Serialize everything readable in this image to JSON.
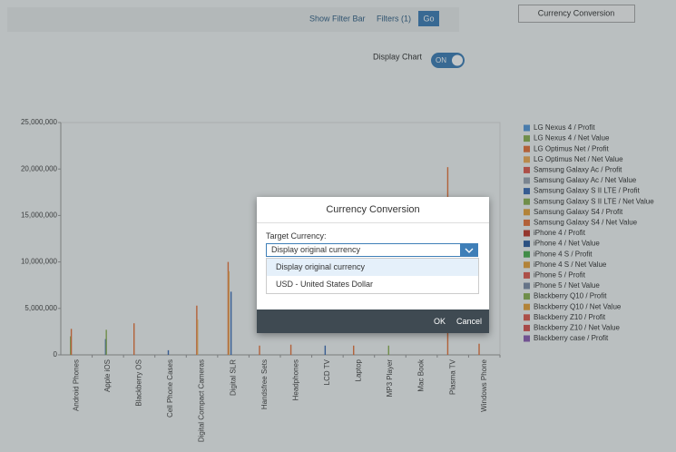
{
  "toolbar": {
    "show_filter_bar": "Show Filter Bar",
    "filters": "Filters (1)",
    "go": "Go",
    "currency_button": "Currency Conversion"
  },
  "display_chart": {
    "label": "Display Chart",
    "toggle": "ON"
  },
  "chart_data": {
    "type": "bar",
    "grid": false,
    "categories": [
      "Android Phones",
      "Apple iOS",
      "Blackberry OS",
      "Cell Phone Cases",
      "Digital Compact Cameras",
      "Digital SLR",
      "Handsfree Sets",
      "Headphones",
      "LCD TV",
      "Laptop",
      "MP3 Player",
      "Mac Book",
      "Plasma TV",
      "Windows Phone"
    ],
    "ylim": [
      0,
      25000000
    ],
    "yticks": [
      0,
      {
        "value": 5000000,
        "label": "5,000,000"
      },
      {
        "value": 10000000,
        "label": "10,000,000"
      },
      {
        "value": 15000000,
        "label": "15,000,000"
      },
      {
        "value": 20000000,
        "label": "20,000,000"
      },
      {
        "value": 25000000,
        "label": "25,000,000"
      }
    ],
    "series": [
      {
        "name": "LG Nexus 4 / Profit",
        "color": "#5899DA",
        "values": [
          null,
          null,
          null,
          null,
          null,
          null,
          null,
          null,
          null,
          null,
          null,
          null,
          null,
          null
        ]
      },
      {
        "name": "LG Nexus 4 / Net Value",
        "color": "#8DB253",
        "values": [
          2000000,
          null,
          null,
          null,
          null,
          null,
          null,
          null,
          null,
          null,
          null,
          null,
          null,
          null
        ]
      },
      {
        "name": "LG Optimus Net / Profit",
        "color": "#E8743B",
        "values": [
          2800000,
          null,
          3400000,
          null,
          5300000,
          10000000,
          1000000,
          1100000,
          null,
          1000000,
          null,
          null,
          20200000,
          1200000
        ]
      },
      {
        "name": "LG Optimus Net / Net Value",
        "color": "#F0AB55",
        "values": [
          null,
          null,
          null,
          null,
          3800000,
          9000000,
          null,
          null,
          null,
          null,
          null,
          null,
          null,
          null
        ]
      },
      {
        "name": "Samsung Galaxy Ac / Profit",
        "color": "#E05A4F",
        "values": [
          null,
          null,
          null,
          null,
          null,
          null,
          null,
          null,
          null,
          null,
          null,
          null,
          null,
          null
        ]
      },
      {
        "name": "Samsung Galaxy Ac / Net Value",
        "color": "#9BA6B3",
        "values": [
          null,
          null,
          null,
          null,
          null,
          null,
          null,
          null,
          null,
          null,
          null,
          null,
          null,
          null
        ]
      },
      {
        "name": "Samsung Galaxy S II LTE / Profit",
        "color": "#3E6DB5",
        "values": [
          null,
          1700000,
          null,
          500000,
          null,
          6800000,
          null,
          null,
          1000000,
          null,
          null,
          null,
          null,
          null
        ]
      },
      {
        "name": "Samsung Galaxy S II LTE / Net Value",
        "color": "#8DB253",
        "values": [
          null,
          2700000,
          null,
          null,
          null,
          null,
          null,
          null,
          null,
          null,
          1000000,
          null,
          null,
          null
        ]
      },
      {
        "name": "Samsung Galaxy S4 / Profit",
        "color": "#E8A33B",
        "values": [
          null,
          null,
          null,
          null,
          null,
          null,
          null,
          null,
          null,
          null,
          null,
          null,
          null,
          null
        ]
      },
      {
        "name": "Samsung Galaxy S4 / Net Value",
        "color": "#E8743B",
        "values": [
          null,
          null,
          null,
          null,
          null,
          null,
          null,
          null,
          null,
          null,
          null,
          null,
          null,
          null
        ]
      },
      {
        "name": "iPhone 4 / Profit",
        "color": "#C0392B",
        "values": [
          null,
          null,
          null,
          null,
          null,
          null,
          null,
          null,
          null,
          null,
          null,
          null,
          null,
          null
        ]
      },
      {
        "name": "iPhone 4 / Net Value",
        "color": "#2F5E9E",
        "values": [
          null,
          null,
          null,
          null,
          null,
          null,
          null,
          null,
          null,
          null,
          null,
          null,
          null,
          null
        ]
      },
      {
        "name": "iPhone 4 S / Profit",
        "color": "#4CAF50",
        "values": [
          null,
          null,
          null,
          null,
          null,
          null,
          null,
          null,
          null,
          null,
          null,
          null,
          null,
          null
        ]
      },
      {
        "name": "iPhone 4 S / Net Value",
        "color": "#E8A33B",
        "values": [
          null,
          null,
          null,
          null,
          null,
          null,
          null,
          null,
          null,
          null,
          null,
          null,
          null,
          null
        ]
      },
      {
        "name": "iPhone 5 / Profit",
        "color": "#E05A4F",
        "values": [
          null,
          null,
          null,
          null,
          null,
          null,
          null,
          null,
          null,
          null,
          null,
          null,
          null,
          null
        ]
      },
      {
        "name": "iPhone 5 / Net Value",
        "color": "#7E8EA8",
        "values": [
          null,
          null,
          null,
          null,
          null,
          null,
          null,
          null,
          null,
          null,
          null,
          null,
          null,
          null
        ]
      },
      {
        "name": "Blackberry Q10 / Profit",
        "color": "#8DB253",
        "values": [
          null,
          null,
          null,
          null,
          null,
          null,
          null,
          null,
          null,
          null,
          null,
          null,
          null,
          null
        ]
      },
      {
        "name": "Blackberry Q10 / Net Value",
        "color": "#E8A33B",
        "values": [
          null,
          null,
          null,
          null,
          null,
          null,
          null,
          null,
          null,
          null,
          null,
          null,
          null,
          null
        ]
      },
      {
        "name": "Blackberry Z10 / Profit",
        "color": "#E05A4F",
        "values": [
          null,
          null,
          null,
          null,
          null,
          null,
          null,
          null,
          null,
          null,
          null,
          null,
          null,
          null
        ]
      },
      {
        "name": "Blackberry Z10 / Net Value",
        "color": "#D9534F",
        "values": [
          null,
          null,
          null,
          null,
          null,
          null,
          null,
          null,
          null,
          null,
          null,
          null,
          null,
          null
        ]
      },
      {
        "name": "Blackberry case / Profit",
        "color": "#8E5FB5",
        "values": [
          null,
          null,
          null,
          null,
          null,
          null,
          null,
          null,
          null,
          null,
          null,
          null,
          null,
          null
        ]
      }
    ]
  },
  "dialog": {
    "title": "Currency Conversion",
    "field_label": "Target Currency:",
    "selected": "Display original currency",
    "options": [
      "Display original currency",
      "USD - United States Dollar"
    ],
    "ok": "OK",
    "cancel": "Cancel"
  }
}
